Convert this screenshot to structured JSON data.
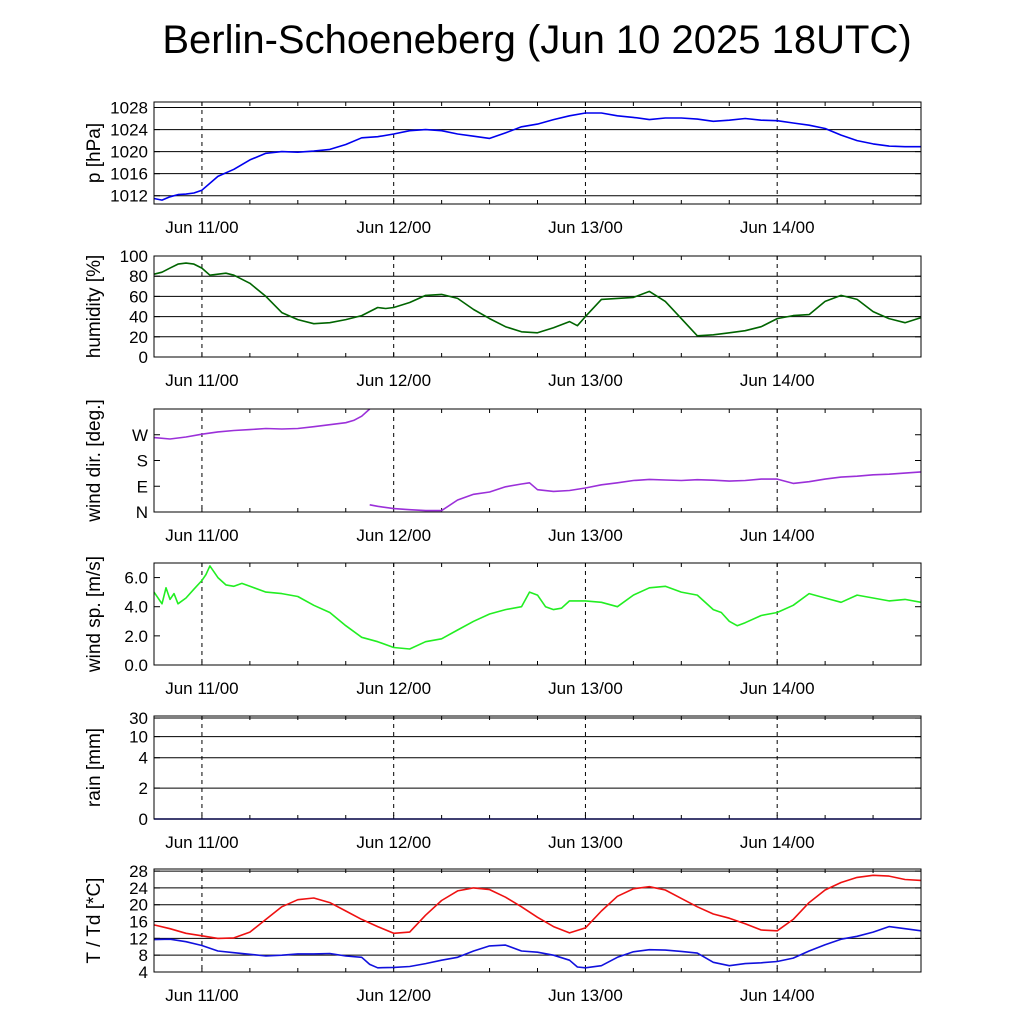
{
  "title": "Berlin-Schoeneberg (Jun 10 2025 18UTC)",
  "x_tick_labels": [
    "Jun 11/00",
    "Jun 12/00",
    "Jun 13/00",
    "Jun 14/00"
  ],
  "colors": {
    "pressure": "#0000ee",
    "humidity": "#006400",
    "wind_dir": "#9b30d9",
    "wind_speed": "#22ee22",
    "rain": "#0000cc",
    "temperature": "#ee1111",
    "dewpoint": "#1111dd",
    "grid": "#000000"
  },
  "chart_data": [
    {
      "type": "line",
      "ylabel": "p [hPa]",
      "x_unit": "hours since Jun 10 18UTC",
      "xlim": [
        0,
        96
      ],
      "ylim": [
        1010.5,
        1029
      ],
      "yticks": [
        1012,
        1016,
        1020,
        1024,
        1028
      ],
      "ytick_labels": [
        "1012",
        "1016",
        "1020",
        "1024",
        "1028"
      ],
      "grid": true,
      "series": [
        {
          "color_key": "pressure",
          "x": [
            0,
            1,
            2,
            3,
            4,
            5,
            6,
            8,
            10,
            12,
            14,
            16,
            18,
            20,
            22,
            24,
            26,
            28,
            30,
            32,
            34,
            36,
            38,
            40,
            42,
            44,
            46,
            48,
            50,
            52,
            54,
            56,
            58,
            60,
            62,
            64,
            66,
            68,
            70,
            72,
            74,
            76,
            78,
            80,
            82,
            84,
            86,
            88,
            90,
            92,
            94,
            96
          ],
          "y": [
            1011.5,
            1011.2,
            1011.8,
            1012.2,
            1012.3,
            1012.5,
            1013.0,
            1015.5,
            1016.8,
            1018.5,
            1019.7,
            1020.0,
            1019.9,
            1020.1,
            1020.4,
            1021.3,
            1022.5,
            1022.7,
            1023.2,
            1023.8,
            1024.0,
            1023.8,
            1023.2,
            1022.8,
            1022.4,
            1023.4,
            1024.5,
            1025.0,
            1025.8,
            1026.5,
            1027.0,
            1027.0,
            1026.5,
            1026.2,
            1025.8,
            1026.1,
            1026.1,
            1025.9,
            1025.5,
            1025.7,
            1026.0,
            1025.7,
            1025.6,
            1025.2,
            1024.8,
            1024.2,
            1023.0,
            1022.0,
            1021.4,
            1021.0,
            1020.9,
            1020.9
          ]
        }
      ]
    },
    {
      "type": "line",
      "ylabel": "humidity [%]",
      "xlim": [
        0,
        96
      ],
      "ylim": [
        0,
        100
      ],
      "yticks": [
        0,
        20,
        40,
        60,
        80,
        100
      ],
      "ytick_labels": [
        "0",
        "20",
        "40",
        "60",
        "80",
        "100"
      ],
      "grid": true,
      "series": [
        {
          "color_key": "humidity",
          "x": [
            0,
            1,
            2,
            3,
            4,
            5,
            6,
            7,
            8,
            9,
            10,
            12,
            14,
            16,
            18,
            20,
            22,
            24,
            26,
            28,
            29,
            30,
            32,
            34,
            36,
            38,
            40,
            42,
            44,
            46,
            48,
            50,
            52,
            53,
            54,
            56,
            58,
            60,
            62,
            64,
            66,
            68,
            70,
            72,
            74,
            76,
            78,
            80,
            82,
            84,
            86,
            88,
            90,
            92,
            94,
            96
          ],
          "y": [
            82,
            84,
            88,
            92,
            93,
            92,
            88,
            81,
            82,
            83,
            81,
            73,
            60,
            44,
            37,
            33,
            34,
            37,
            41,
            49,
            48,
            49,
            54,
            61,
            62,
            58,
            47,
            38,
            30,
            25,
            24,
            29,
            35,
            31,
            40,
            57,
            58,
            59,
            65,
            55,
            38,
            21,
            22,
            24,
            26,
            30,
            38,
            41,
            42,
            55,
            61,
            57,
            45,
            38,
            34,
            39
          ]
        }
      ]
    },
    {
      "type": "line",
      "ylabel": "wind dir. [deg.]",
      "xlim": [
        0,
        96
      ],
      "ylim": [
        0,
        360
      ],
      "yticks": [
        0,
        90,
        180,
        270
      ],
      "ytick_labels": [
        "N",
        "E",
        "S",
        "W"
      ],
      "grid": false,
      "series": [
        {
          "color_key": "wind_dir",
          "x": [
            0,
            2,
            4,
            6,
            8,
            10,
            12,
            14,
            16,
            18,
            20,
            22,
            24,
            25,
            26,
            27
          ],
          "y": [
            260,
            255,
            262,
            272,
            280,
            285,
            288,
            292,
            290,
            292,
            298,
            305,
            312,
            320,
            335,
            360
          ]
        },
        {
          "color_key": "wind_dir",
          "x": [
            27,
            28,
            30,
            32,
            34,
            36,
            38,
            40,
            42,
            44,
            46,
            47,
            48,
            50,
            52,
            54,
            56,
            58,
            60,
            62,
            64,
            66,
            68,
            70,
            72,
            74,
            76,
            78,
            80,
            82,
            84,
            86,
            88,
            90,
            92,
            94,
            96
          ],
          "y": [
            25,
            20,
            12,
            8,
            5,
            5,
            42,
            62,
            70,
            88,
            98,
            102,
            78,
            72,
            75,
            84,
            95,
            102,
            110,
            114,
            112,
            110,
            113,
            111,
            108,
            110,
            115,
            115,
            100,
            106,
            115,
            122,
            125,
            130,
            132,
            136,
            140
          ]
        }
      ]
    },
    {
      "type": "line",
      "ylabel": "wind sp. [m/s]",
      "xlim": [
        0,
        96
      ],
      "ylim": [
        0,
        7
      ],
      "yticks": [
        0,
        2,
        4,
        6
      ],
      "ytick_labels": [
        "0.0",
        "2.0",
        "4.0",
        "6.0"
      ],
      "grid": false,
      "series": [
        {
          "color_key": "wind_speed",
          "x": [
            0,
            1,
            1.5,
            2,
            2.5,
            3,
            4,
            5,
            6,
            6.5,
            7,
            8,
            9,
            10,
            11,
            12,
            14,
            16,
            18,
            20,
            22,
            24,
            26,
            28,
            30,
            32,
            34,
            36,
            38,
            40,
            42,
            44,
            46,
            47,
            48,
            49,
            50,
            51,
            52,
            54,
            56,
            58,
            60,
            62,
            64,
            66,
            68,
            70,
            71,
            72,
            73,
            74,
            76,
            78,
            80,
            82,
            84,
            86,
            88,
            90,
            92,
            94,
            96
          ],
          "y": [
            5.0,
            4.2,
            5.3,
            4.5,
            4.9,
            4.2,
            4.6,
            5.2,
            5.8,
            6.2,
            6.8,
            6.0,
            5.5,
            5.4,
            5.6,
            5.4,
            5.0,
            4.9,
            4.7,
            4.1,
            3.6,
            2.7,
            1.9,
            1.6,
            1.2,
            1.1,
            1.6,
            1.8,
            2.4,
            3.0,
            3.5,
            3.8,
            4.0,
            5.0,
            4.8,
            4.0,
            3.8,
            3.9,
            4.4,
            4.4,
            4.3,
            4.0,
            4.8,
            5.3,
            5.4,
            5.0,
            4.8,
            3.8,
            3.6,
            3.0,
            2.7,
            2.9,
            3.4,
            3.6,
            4.1,
            4.9,
            4.6,
            4.3,
            4.8,
            4.6,
            4.4,
            4.5,
            4.3
          ]
        }
      ]
    },
    {
      "type": "line",
      "ylabel": "rain [mm]",
      "xlim": [
        0,
        96
      ],
      "scale": "stretched",
      "yticks": [
        0,
        2,
        4,
        10,
        30
      ],
      "ytick_labels": [
        "0",
        "2",
        "4",
        "10",
        "30"
      ],
      "grid": true,
      "series": [
        {
          "color_key": "rain",
          "x": [
            0,
            96
          ],
          "y": [
            0,
            0
          ]
        }
      ]
    },
    {
      "type": "line",
      "ylabel": "T / Td [*C]",
      "xlim": [
        0,
        96
      ],
      "ylim": [
        4,
        28.5
      ],
      "yticks": [
        4,
        8,
        12,
        16,
        20,
        24,
        28
      ],
      "ytick_labels": [
        "4",
        "8",
        "12",
        "16",
        "20",
        "24",
        "28"
      ],
      "grid": true,
      "series": [
        {
          "name": "T",
          "color_key": "temperature",
          "x": [
            0,
            2,
            4,
            6,
            8,
            10,
            12,
            14,
            16,
            18,
            20,
            22,
            24,
            26,
            28,
            30,
            32,
            34,
            36,
            38,
            40,
            42,
            44,
            46,
            48,
            50,
            52,
            54,
            56,
            58,
            60,
            62,
            64,
            66,
            68,
            70,
            72,
            74,
            76,
            78,
            80,
            82,
            84,
            86,
            88,
            90,
            92,
            94,
            96
          ],
          "y": [
            15.2,
            14.3,
            13.2,
            12.6,
            12.0,
            12.1,
            13.5,
            16.5,
            19.5,
            21.2,
            21.6,
            20.5,
            18.5,
            16.5,
            14.8,
            13.2,
            13.5,
            17.5,
            21.0,
            23.3,
            24.0,
            23.6,
            21.8,
            19.5,
            17.0,
            14.8,
            13.3,
            14.5,
            18.5,
            22.0,
            23.8,
            24.3,
            23.5,
            21.5,
            19.5,
            17.8,
            16.8,
            15.5,
            14.0,
            13.8,
            16.5,
            20.5,
            23.5,
            25.3,
            26.5,
            27.0,
            26.8,
            26.0,
            25.8
          ]
        },
        {
          "name": "Td",
          "color_key": "dewpoint",
          "x": [
            0,
            2,
            4,
            6,
            8,
            10,
            12,
            14,
            16,
            18,
            20,
            22,
            24,
            26,
            27,
            28,
            30,
            32,
            34,
            36,
            38,
            40,
            42,
            44,
            46,
            48,
            50,
            52,
            53,
            54,
            56,
            58,
            60,
            62,
            64,
            66,
            68,
            70,
            72,
            74,
            76,
            78,
            80,
            82,
            84,
            86,
            88,
            90,
            92,
            94,
            96
          ],
          "y": [
            11.7,
            11.8,
            11.2,
            10.3,
            9.0,
            8.6,
            8.2,
            7.8,
            8.0,
            8.3,
            8.3,
            8.4,
            7.8,
            7.5,
            5.8,
            5.0,
            5.1,
            5.3,
            6.0,
            6.8,
            7.5,
            9.0,
            10.2,
            10.4,
            9.0,
            8.7,
            8.0,
            6.8,
            5.2,
            5.0,
            5.5,
            7.5,
            8.8,
            9.3,
            9.2,
            8.9,
            8.5,
            6.3,
            5.5,
            6.0,
            6.2,
            6.5,
            7.3,
            9.0,
            10.5,
            11.8,
            12.5,
            13.5,
            14.8,
            14.3,
            13.8
          ]
        }
      ]
    }
  ]
}
